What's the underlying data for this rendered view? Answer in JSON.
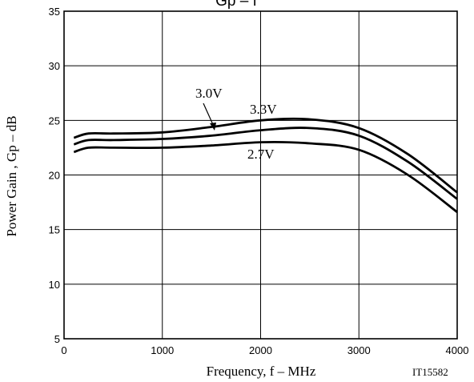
{
  "chart_data": {
    "type": "line",
    "title": "Gp – f",
    "xlabel": "Frequency, f  –  MHz",
    "ylabel": "Power Gain , Gp  –  dB",
    "xlim": [
      0,
      4000
    ],
    "ylim": [
      5,
      35
    ],
    "x_ticks": [
      0,
      1000,
      2000,
      3000,
      4000
    ],
    "y_ticks": [
      5,
      10,
      15,
      20,
      25,
      30,
      35
    ],
    "grid": true,
    "figure_code": "IT15582",
    "series": [
      {
        "name": "3.3V",
        "x": [
          100,
          250,
          500,
          1000,
          1500,
          2000,
          2500,
          3000,
          3500,
          4000
        ],
        "y": [
          23.4,
          23.8,
          23.8,
          23.9,
          24.4,
          25.0,
          25.1,
          24.3,
          21.9,
          18.4
        ]
      },
      {
        "name": "3.0V",
        "x": [
          100,
          250,
          500,
          1000,
          1500,
          2000,
          2500,
          3000,
          3500,
          4000
        ],
        "y": [
          22.8,
          23.2,
          23.2,
          23.3,
          23.6,
          24.1,
          24.3,
          23.6,
          21.2,
          17.8
        ]
      },
      {
        "name": "2.7V",
        "x": [
          100,
          250,
          500,
          1000,
          1500,
          2000,
          2500,
          3000,
          3500,
          4000
        ],
        "y": [
          22.1,
          22.5,
          22.5,
          22.5,
          22.7,
          23.0,
          22.9,
          22.3,
          20.0,
          16.6
        ]
      }
    ]
  }
}
